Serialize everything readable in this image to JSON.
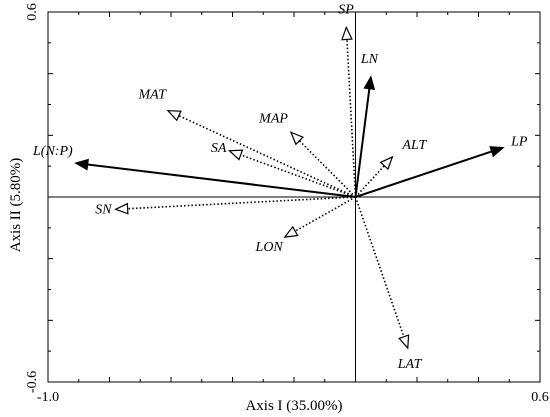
{
  "chart_data": {
    "type": "biplot",
    "xlabel": "Axis I (35.00%)",
    "ylabel": "Axis II (5.80%)",
    "xlim": [
      -1.0,
      0.6
    ],
    "ylim": [
      -0.6,
      0.6
    ],
    "x_tick_labels": [
      {
        "value": -1.0,
        "label": "-1.0"
      },
      {
        "value": 0.6,
        "label": "0.6"
      }
    ],
    "y_tick_labels": [
      {
        "value": 0.6,
        "label": "0.6"
      },
      {
        "value": -0.6,
        "label": "-0.6"
      }
    ],
    "vectors": [
      {
        "label": "LP",
        "x": 0.48,
        "y": 0.16,
        "style": "solid"
      },
      {
        "label": "LN",
        "x": 0.05,
        "y": 0.39,
        "style": "solid"
      },
      {
        "label": "L(N:P)",
        "x": -0.91,
        "y": 0.11,
        "style": "solid"
      },
      {
        "label": "SP",
        "x": -0.03,
        "y": 0.55,
        "style": "dotted"
      },
      {
        "label": "MAT",
        "x": -0.61,
        "y": 0.28,
        "style": "dotted"
      },
      {
        "label": "MAP",
        "x": -0.21,
        "y": 0.21,
        "style": "dotted"
      },
      {
        "label": "SA",
        "x": -0.41,
        "y": 0.15,
        "style": "dotted"
      },
      {
        "label": "ALT",
        "x": 0.12,
        "y": 0.13,
        "style": "dotted"
      },
      {
        "label": "SN",
        "x": -0.78,
        "y": -0.04,
        "style": "dotted"
      },
      {
        "label": "LON",
        "x": -0.23,
        "y": -0.13,
        "style": "dotted"
      },
      {
        "label": "LAT",
        "x": 0.17,
        "y": -0.49,
        "style": "dotted"
      }
    ]
  }
}
